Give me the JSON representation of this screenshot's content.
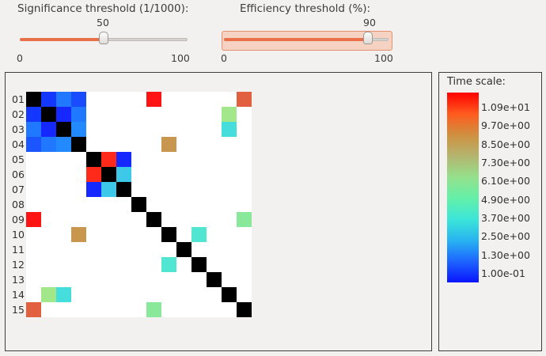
{
  "sig": {
    "label": "Significance threshold (1/1000):",
    "value_text": "50",
    "min_text": "0",
    "max_text": "100",
    "value": 50,
    "max": 100
  },
  "eff": {
    "label": "Efficiency threshold (%):",
    "value_text": "90",
    "min_text": "0",
    "max_text": "100",
    "value": 90,
    "max": 100
  },
  "matrix": {
    "row_labels": [
      "01",
      "02",
      "03",
      "04",
      "05",
      "06",
      "07",
      "08",
      "09",
      "10",
      "11",
      "12",
      "13",
      "14",
      "15"
    ],
    "n_cols": 15,
    "cells": [
      {
        "r": 1,
        "c": 1,
        "color": "#000000"
      },
      {
        "r": 1,
        "c": 2,
        "color": "#1437ff"
      },
      {
        "r": 1,
        "c": 3,
        "color": "#1f78ff"
      },
      {
        "r": 1,
        "c": 4,
        "color": "#1a4cff"
      },
      {
        "r": 1,
        "c": 9,
        "color": "#ff1414"
      },
      {
        "r": 1,
        "c": 15,
        "color": "#e06040"
      },
      {
        "r": 2,
        "c": 1,
        "color": "#1437ff"
      },
      {
        "r": 2,
        "c": 2,
        "color": "#000000"
      },
      {
        "r": 2,
        "c": 3,
        "color": "#1428ff"
      },
      {
        "r": 2,
        "c": 4,
        "color": "#1f78ff"
      },
      {
        "r": 2,
        "c": 14,
        "color": "#a2e88a"
      },
      {
        "r": 3,
        "c": 1,
        "color": "#1f78ff"
      },
      {
        "r": 3,
        "c": 2,
        "color": "#1428ff"
      },
      {
        "r": 3,
        "c": 3,
        "color": "#000000"
      },
      {
        "r": 3,
        "c": 4,
        "color": "#2389ff"
      },
      {
        "r": 3,
        "c": 14,
        "color": "#46dedc"
      },
      {
        "r": 4,
        "c": 1,
        "color": "#1a55ff"
      },
      {
        "r": 4,
        "c": 2,
        "color": "#1f78ff"
      },
      {
        "r": 4,
        "c": 3,
        "color": "#2389ff"
      },
      {
        "r": 4,
        "c": 4,
        "color": "#000000"
      },
      {
        "r": 4,
        "c": 10,
        "color": "#c8964f"
      },
      {
        "r": 5,
        "c": 5,
        "color": "#000000"
      },
      {
        "r": 5,
        "c": 6,
        "color": "#ff2a1a"
      },
      {
        "r": 5,
        "c": 7,
        "color": "#1428ff"
      },
      {
        "r": 6,
        "c": 5,
        "color": "#ff2a1a"
      },
      {
        "r": 6,
        "c": 6,
        "color": "#000000"
      },
      {
        "r": 6,
        "c": 7,
        "color": "#3cc8e8"
      },
      {
        "r": 7,
        "c": 5,
        "color": "#1428ff"
      },
      {
        "r": 7,
        "c": 6,
        "color": "#3cc8e8"
      },
      {
        "r": 7,
        "c": 7,
        "color": "#000000"
      },
      {
        "r": 8,
        "c": 8,
        "color": "#000000"
      },
      {
        "r": 9,
        "c": 1,
        "color": "#ff1414"
      },
      {
        "r": 9,
        "c": 9,
        "color": "#000000"
      },
      {
        "r": 9,
        "c": 15,
        "color": "#8ae89a"
      },
      {
        "r": 10,
        "c": 4,
        "color": "#c8964f"
      },
      {
        "r": 10,
        "c": 10,
        "color": "#000000"
      },
      {
        "r": 10,
        "c": 12,
        "color": "#50e6d2"
      },
      {
        "r": 11,
        "c": 11,
        "color": "#000000"
      },
      {
        "r": 12,
        "c": 10,
        "color": "#50e6d2"
      },
      {
        "r": 12,
        "c": 12,
        "color": "#000000"
      },
      {
        "r": 13,
        "c": 13,
        "color": "#000000"
      },
      {
        "r": 14,
        "c": 2,
        "color": "#a2e88a"
      },
      {
        "r": 14,
        "c": 3,
        "color": "#46dedc"
      },
      {
        "r": 14,
        "c": 14,
        "color": "#000000"
      },
      {
        "r": 15,
        "c": 1,
        "color": "#e06040"
      },
      {
        "r": 15,
        "c": 9,
        "color": "#8ae89a"
      },
      {
        "r": 15,
        "c": 15,
        "color": "#000000"
      }
    ]
  },
  "legend": {
    "title": "Time scale:",
    "ticks": [
      "1.09e+01",
      "9.70e+00",
      "8.50e+00",
      "7.30e+00",
      "6.10e+00",
      "4.90e+00",
      "3.70e+00",
      "2.50e+00",
      "1.30e+00",
      "1.00e-01"
    ],
    "colors": [
      "#ff0000",
      "#ff5a1e",
      "#d09040",
      "#b4b46e",
      "#96e08c",
      "#64f0a8",
      "#3ce6d8",
      "#28b4f0",
      "#1e64ff",
      "#0a14ff"
    ]
  }
}
